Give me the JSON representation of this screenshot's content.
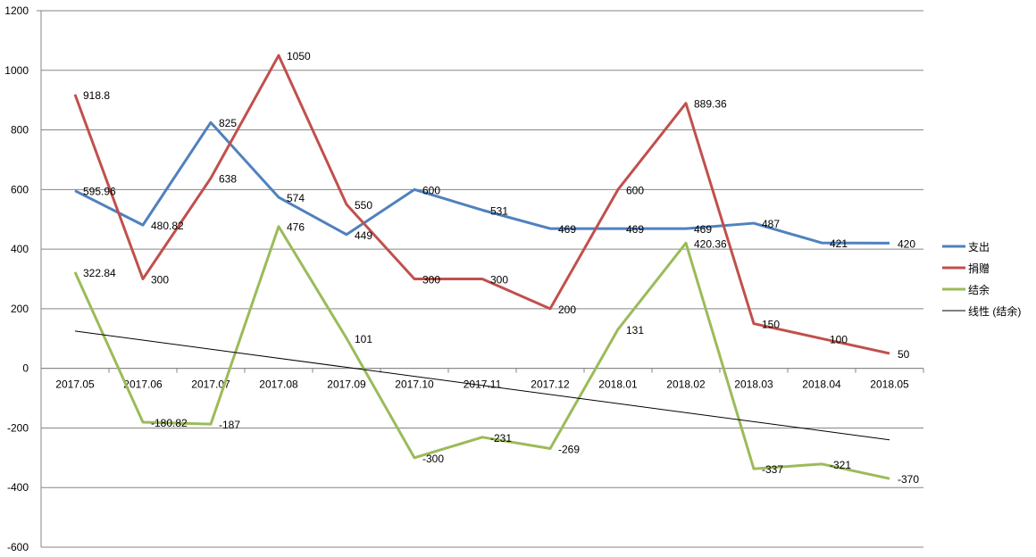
{
  "chart_data": {
    "type": "line",
    "title": "",
    "xlabel": "",
    "ylabel": "",
    "categories": [
      "2017.05",
      "2017.06",
      "2017.07",
      "2017.08",
      "2017.09",
      "2017.10",
      "2017.11",
      "2017.12",
      "2018.01",
      "2018.02",
      "2018.03",
      "2018.04",
      "2018.05"
    ],
    "ylim": [
      -600,
      1200
    ],
    "yticks": [
      -600,
      -400,
      -200,
      0,
      200,
      400,
      600,
      800,
      1000,
      1200
    ],
    "grid": true,
    "legend_position": "right",
    "series": [
      {
        "name": "支出",
        "color": "#4F81BD",
        "values": [
          595.96,
          480.82,
          825,
          574,
          449,
          600,
          531,
          469,
          469,
          469,
          487,
          421,
          420
        ]
      },
      {
        "name": "捐赠",
        "color": "#C0504D",
        "values": [
          918.8,
          300,
          638,
          1050,
          550,
          300,
          300,
          200,
          600,
          889.36,
          150,
          100,
          50
        ]
      },
      {
        "name": "结余",
        "color": "#9BBB59",
        "values": [
          322.84,
          -180.82,
          -187,
          476,
          101,
          -300,
          -231,
          -269,
          131,
          420.36,
          -337,
          -321,
          -370
        ]
      }
    ],
    "trendline": {
      "name": "线性 (结余)",
      "type": "linear",
      "of_series": "结余",
      "color": "#000000"
    }
  }
}
